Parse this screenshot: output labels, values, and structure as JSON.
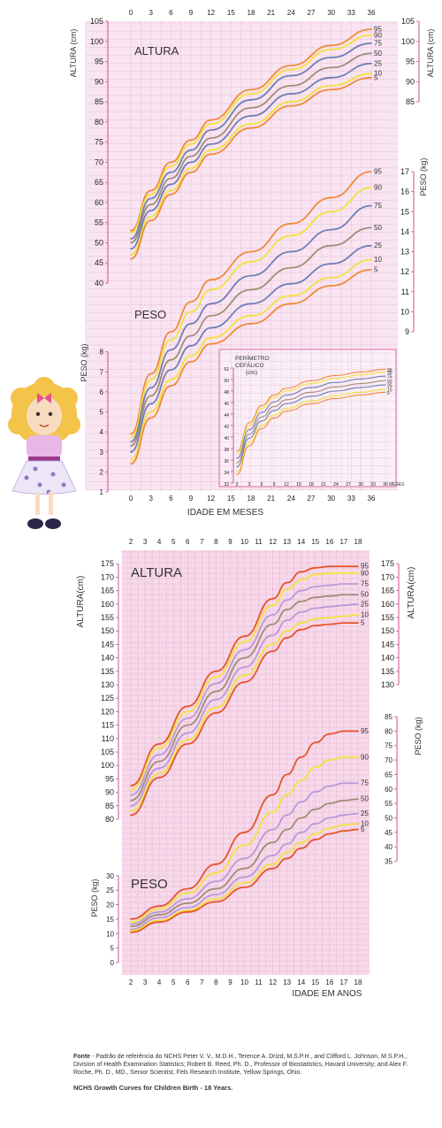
{
  "colors": {
    "p95": "#f08a3c",
    "p90": "#f2e23a",
    "p75": "#6f7fb6",
    "p50": "#a08d79",
    "p25": "#6f7fb6",
    "p10": "#f2e23a",
    "p5": "#f08a3c",
    "older_p95": "#e8542a",
    "older_p75": "#b89ad8",
    "older_p50": "#a08d79",
    "panel_infant": "#f9e4f1",
    "panel_older": "#f7d9ea",
    "axis": "#d24c95"
  },
  "chart_data": [
    {
      "id": "infant-height",
      "type": "line",
      "title": "ALTURA",
      "ylabel": "ALTURA (cm)",
      "xlim": [
        0,
        36
      ],
      "ylim": [
        40,
        105
      ],
      "xticks": [
        "0",
        "3",
        "6",
        "9",
        "12",
        "15",
        "18",
        "21",
        "24",
        "27",
        "30",
        "33",
        "36"
      ],
      "yticks": [
        "40",
        "45",
        "50",
        "55",
        "60",
        "65",
        "70",
        "75",
        "80",
        "85",
        "90",
        "95",
        "100",
        "105"
      ],
      "yticks_right": [
        "85",
        "90",
        "95",
        "100",
        "105"
      ],
      "x": [
        0,
        3,
        6,
        9,
        12,
        18,
        24,
        30,
        36
      ],
      "series": [
        {
          "name": "95",
          "values": [
            53.0,
            63.0,
            70.0,
            75.5,
            80.5,
            88.0,
            94.0,
            99.0,
            103.0
          ]
        },
        {
          "name": "90",
          "values": [
            52.5,
            62.0,
            69.0,
            74.5,
            79.5,
            87.0,
            93.0,
            98.0,
            101.5
          ]
        },
        {
          "name": "75",
          "values": [
            51.0,
            61.0,
            67.5,
            73.0,
            78.0,
            85.5,
            91.5,
            96.0,
            99.5
          ]
        },
        {
          "name": "50",
          "values": [
            50.0,
            59.5,
            66.0,
            71.5,
            76.0,
            83.5,
            89.0,
            93.5,
            97.0
          ]
        },
        {
          "name": "25",
          "values": [
            48.5,
            58.0,
            64.5,
            70.0,
            74.5,
            81.5,
            87.0,
            91.0,
            94.5
          ]
        },
        {
          "name": "10",
          "values": [
            47.0,
            56.5,
            63.0,
            68.5,
            73.0,
            79.5,
            85.0,
            89.0,
            92.0
          ]
        },
        {
          "name": "5",
          "values": [
            46.0,
            55.5,
            62.0,
            67.5,
            72.0,
            78.5,
            84.0,
            88.0,
            91.0
          ]
        }
      ]
    },
    {
      "id": "infant-weight",
      "type": "line",
      "title": "PESO",
      "ylabel": "PESO (kg)",
      "ylabel_right": "PESO (kg)",
      "xlabel": "IDADE EM MESES",
      "xlim": [
        0,
        36
      ],
      "ylim": [
        1,
        17
      ],
      "xticks": [
        "0",
        "3",
        "6",
        "9",
        "12",
        "15",
        "18",
        "21",
        "24",
        "27",
        "30",
        "33",
        "36"
      ],
      "yticks": [
        "1",
        "2",
        "3",
        "4",
        "5",
        "6",
        "7",
        "8"
      ],
      "yticks_right": [
        "9",
        "10",
        "11",
        "12",
        "13",
        "14",
        "15",
        "16",
        "17"
      ],
      "x": [
        0,
        3,
        6,
        9,
        12,
        18,
        24,
        30,
        36
      ],
      "series": [
        {
          "name": "95",
          "values": [
            3.9,
            6.9,
            9.0,
            10.5,
            11.6,
            13.0,
            14.4,
            15.7,
            17.0
          ]
        },
        {
          "name": "90",
          "values": [
            3.7,
            6.6,
            8.6,
            10.0,
            11.1,
            12.5,
            13.8,
            15.0,
            16.2
          ]
        },
        {
          "name": "75",
          "values": [
            3.5,
            6.2,
            8.1,
            9.4,
            10.4,
            11.8,
            13.0,
            14.1,
            15.3
          ]
        },
        {
          "name": "50",
          "values": [
            3.3,
            5.8,
            7.6,
            8.8,
            9.8,
            11.1,
            12.2,
            13.3,
            14.2
          ]
        },
        {
          "name": "25",
          "values": [
            3.0,
            5.4,
            7.1,
            8.3,
            9.2,
            10.4,
            11.4,
            12.4,
            13.3
          ]
        },
        {
          "name": "10",
          "values": [
            2.6,
            5.0,
            6.6,
            7.8,
            8.7,
            9.8,
            10.8,
            11.7,
            12.6
          ]
        },
        {
          "name": "5",
          "values": [
            2.4,
            4.7,
            6.3,
            7.5,
            8.4,
            9.4,
            10.4,
            11.3,
            12.1
          ]
        }
      ]
    },
    {
      "id": "head-circumference",
      "type": "line",
      "title": "PERÍMETRO CEFÁLICO (cm)",
      "xlabel": "MESES",
      "xlim": [
        0,
        36
      ],
      "ylim": [
        32,
        54
      ],
      "xticks": [
        "0",
        "3",
        "6",
        "9",
        "12",
        "15",
        "18",
        "21",
        "24",
        "27",
        "30",
        "33",
        "36"
      ],
      "yticks": [
        "32",
        "34",
        "36",
        "38",
        "40",
        "42",
        "44",
        "46",
        "48",
        "50",
        "52"
      ],
      "x": [
        0,
        3,
        6,
        9,
        12,
        18,
        24,
        30,
        36
      ],
      "series": [
        {
          "name": "95",
          "values": [
            37.5,
            42.5,
            45.5,
            47.3,
            48.5,
            49.8,
            50.7,
            51.3,
            51.8
          ]
        },
        {
          "name": "90",
          "values": [
            37.0,
            42.0,
            45.0,
            46.8,
            48.0,
            49.3,
            50.2,
            50.8,
            51.3
          ]
        },
        {
          "name": "75",
          "values": [
            36.3,
            41.3,
            44.3,
            46.1,
            47.3,
            48.6,
            49.5,
            50.1,
            50.6
          ]
        },
        {
          "name": "50",
          "values": [
            35.5,
            40.5,
            43.5,
            45.3,
            46.5,
            47.8,
            48.7,
            49.3,
            49.8
          ]
        },
        {
          "name": "25",
          "values": [
            34.8,
            39.8,
            42.8,
            44.6,
            45.8,
            47.1,
            48.0,
            48.6,
            49.1
          ]
        },
        {
          "name": "10",
          "values": [
            34.0,
            39.0,
            42.0,
            43.8,
            45.0,
            46.3,
            47.2,
            47.8,
            48.3
          ]
        },
        {
          "name": "5",
          "values": [
            33.5,
            38.5,
            41.5,
            43.3,
            44.5,
            45.8,
            46.7,
            47.3,
            47.8
          ]
        }
      ]
    },
    {
      "id": "older-height",
      "type": "line",
      "title": "ALTURA",
      "ylabel": "ALTURA(cm)",
      "xlim": [
        2,
        18
      ],
      "ylim": [
        80,
        180
      ],
      "xticks": [
        "2",
        "3",
        "4",
        "5",
        "6",
        "7",
        "8",
        "9",
        "10",
        "11",
        "12",
        "13",
        "14",
        "15",
        "16",
        "17",
        "18"
      ],
      "yticks": [
        "80",
        "85",
        "90",
        "95",
        "100",
        "105",
        "110",
        "115",
        "120",
        "125",
        "130",
        "135",
        "140",
        "145",
        "150",
        "155",
        "160",
        "165",
        "170",
        "175"
      ],
      "yticks_right": [
        "130",
        "135",
        "140",
        "145",
        "150",
        "155",
        "160",
        "165",
        "170",
        "175"
      ],
      "x": [
        2,
        4,
        6,
        8,
        10,
        12,
        13,
        14,
        15,
        16,
        17,
        18
      ],
      "series": [
        {
          "name": "95",
          "values": [
            92.5,
            108.0,
            122.0,
            135.0,
            148.0,
            162.0,
            168.0,
            172.0,
            173.5,
            174.0,
            174.0,
            174.0
          ]
        },
        {
          "name": "90",
          "values": [
            91.0,
            106.5,
            120.0,
            133.0,
            146.0,
            159.5,
            165.5,
            169.0,
            171.0,
            171.5,
            171.5,
            171.5
          ]
        },
        {
          "name": "75",
          "values": [
            89.0,
            104.0,
            117.5,
            130.5,
            143.0,
            156.0,
            161.5,
            165.0,
            166.5,
            167.0,
            167.5,
            167.5
          ]
        },
        {
          "name": "50",
          "values": [
            87.0,
            101.5,
            115.0,
            127.5,
            140.0,
            152.5,
            158.0,
            161.0,
            162.5,
            163.0,
            163.5,
            163.5
          ]
        },
        {
          "name": "25",
          "values": [
            85.0,
            99.0,
            112.0,
            124.5,
            136.5,
            148.5,
            154.0,
            157.0,
            158.5,
            159.0,
            159.5,
            160.0
          ]
        },
        {
          "name": "10",
          "values": [
            83.0,
            97.0,
            109.5,
            121.5,
            133.5,
            145.0,
            150.0,
            153.0,
            154.5,
            155.0,
            155.5,
            156.0
          ]
        },
        {
          "name": "5",
          "values": [
            81.5,
            95.5,
            108.0,
            119.5,
            131.0,
            142.5,
            147.5,
            150.5,
            152.0,
            152.5,
            153.0,
            153.0
          ]
        }
      ]
    },
    {
      "id": "older-weight",
      "type": "line",
      "title": "PESO",
      "ylabel": "PESO (kg)",
      "ylabel_right": "PESO (kg)",
      "xlabel": "IDADE EM ANOS",
      "xlim": [
        2,
        18
      ],
      "ylim": [
        0,
        85
      ],
      "xticks": [
        "2",
        "3",
        "4",
        "5",
        "6",
        "7",
        "8",
        "9",
        "10",
        "11",
        "12",
        "13",
        "14",
        "15",
        "16",
        "17",
        "18"
      ],
      "yticks": [
        "0",
        "5",
        "10",
        "15",
        "20",
        "25",
        "30"
      ],
      "yticks_right": [
        "35",
        "40",
        "45",
        "50",
        "55",
        "60",
        "65",
        "70",
        "75",
        "80",
        "85"
      ],
      "x": [
        2,
        4,
        6,
        8,
        10,
        12,
        13,
        14,
        15,
        16,
        17,
        18
      ],
      "series": [
        {
          "name": "95",
          "values": [
            15.0,
            19.5,
            25.5,
            34.0,
            45.0,
            58.0,
            65.0,
            71.0,
            76.0,
            79.0,
            80.0,
            80.0
          ]
        },
        {
          "name": "90",
          "values": [
            14.0,
            18.5,
            24.0,
            31.0,
            40.5,
            52.0,
            58.0,
            63.0,
            67.5,
            70.0,
            71.0,
            71.0
          ]
        },
        {
          "name": "75",
          "values": [
            13.3,
            17.5,
            22.0,
            28.0,
            36.0,
            46.0,
            51.0,
            55.5,
            59.0,
            61.0,
            62.0,
            62.0
          ]
        },
        {
          "name": "50",
          "values": [
            12.5,
            16.5,
            20.5,
            25.5,
            32.5,
            41.5,
            46.0,
            50.0,
            53.0,
            55.0,
            56.0,
            56.5
          ]
        },
        {
          "name": "25",
          "values": [
            11.5,
            15.5,
            19.0,
            23.5,
            29.5,
            37.0,
            41.0,
            45.0,
            48.0,
            50.0,
            51.0,
            51.5
          ]
        },
        {
          "name": "10",
          "values": [
            11.0,
            14.5,
            18.0,
            22.0,
            27.5,
            34.0,
            38.0,
            41.5,
            44.5,
            46.5,
            47.5,
            48.0
          ]
        },
        {
          "name": "5",
          "values": [
            10.5,
            14.0,
            17.5,
            21.0,
            26.0,
            32.5,
            36.0,
            39.5,
            42.5,
            44.5,
            45.5,
            46.0
          ]
        }
      ]
    }
  ],
  "footer": {
    "fonte_label": "Fonte",
    "fonte_text": " - Padrão de referência do NCHS Peter V. V., M.D.H., Terence A. Drizd, M.S.P.H., and Clifford L. Johnson, M.S.P.H., Division of Health Examination Statistics; Robert B. Reed, Ph. D., Professor of Biostatistics, Havard University; and Alex F. Roche, Ph. D., MD., Senior Scientist, Fels Research Institute, Yellow Springs, Ohio.",
    "title": "NCHS Growth Curves for Children Birth - 18 Years."
  }
}
